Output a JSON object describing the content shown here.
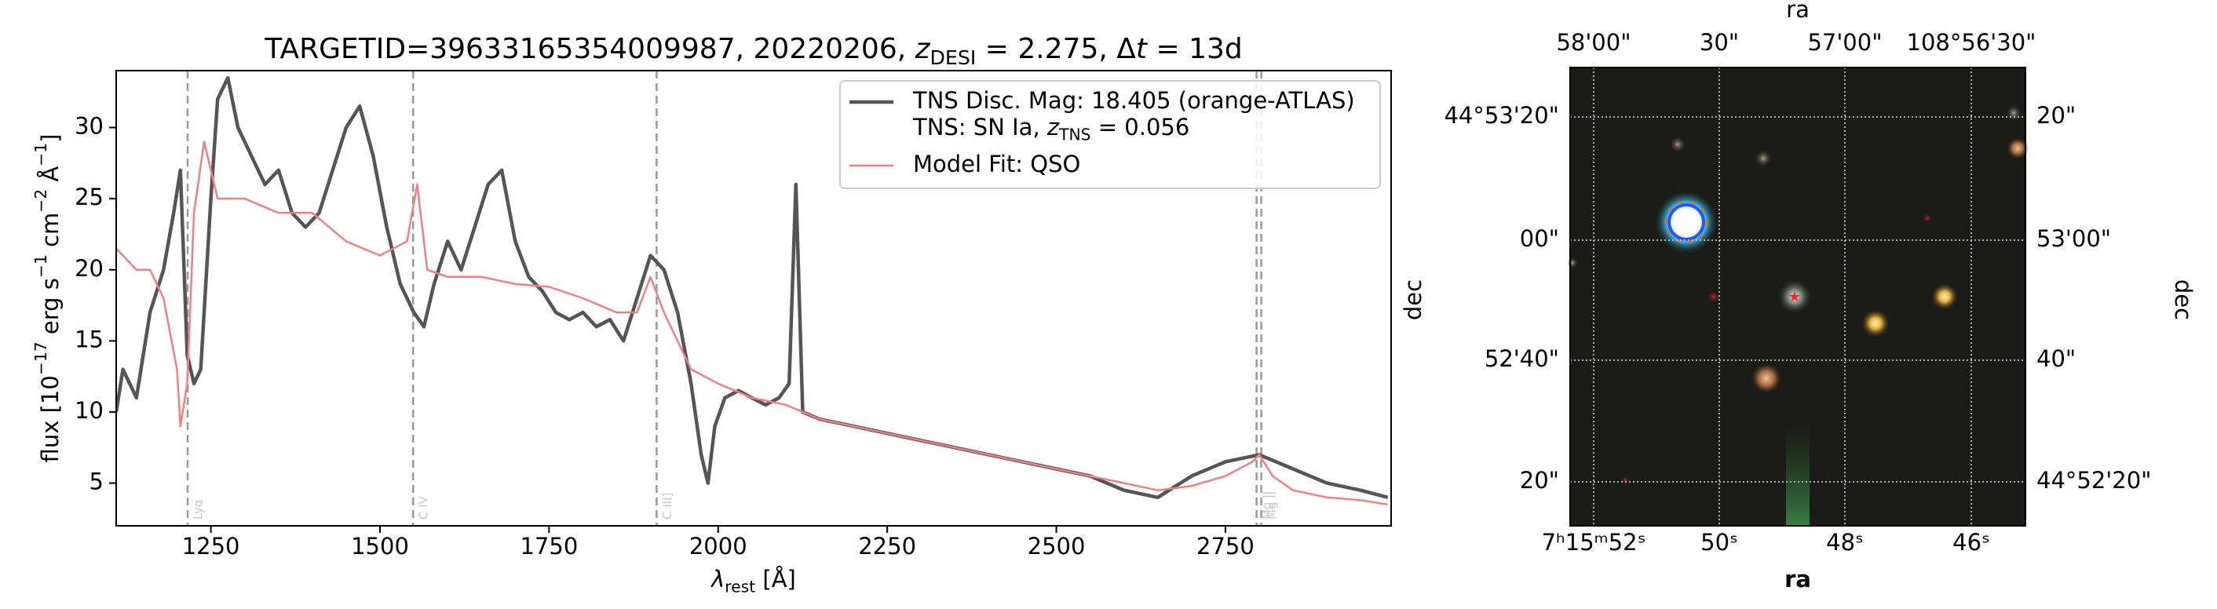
{
  "chart_data": [
    {
      "type": "line",
      "title": [
        {
          "text": "TARGETID=39633165354009987, 20220206, "
        },
        {
          "text": "z",
          "italic": true
        },
        {
          "text": "DESI",
          "sub": true
        },
        {
          "text": " = 2.275, Δ"
        },
        {
          "text": "t",
          "italic": true
        },
        {
          "text": " = 13d"
        }
      ],
      "xlabel": [
        {
          "text": "λ",
          "italic": true
        },
        {
          "text": "rest",
          "sub": true
        },
        {
          "text": " [Å]"
        }
      ],
      "ylabel": [
        {
          "text": "flux [10"
        },
        {
          "text": "−17",
          "sup": true
        },
        {
          "text": " erg s"
        },
        {
          "text": "−1",
          "sup": true
        },
        {
          "text": " cm"
        },
        {
          "text": "−2",
          "sup": true
        },
        {
          "text": " Å"
        },
        {
          "text": "−1",
          "sup": true
        },
        {
          "text": "]"
        }
      ],
      "xlim": [
        1110,
        2995
      ],
      "ylim": [
        2,
        34
      ],
      "xticks": [
        1250,
        1500,
        1750,
        2000,
        2250,
        2500,
        2750
      ],
      "yticks": [
        5,
        10,
        15,
        20,
        25,
        30
      ],
      "lines": [
        {
          "value": 1215.67,
          "label": "Lyα"
        },
        {
          "value": 1549,
          "label": "C IV"
        },
        {
          "value": 1909,
          "label": "C III]"
        },
        {
          "value": 2796,
          "label": "Mg II"
        },
        {
          "value": 2803,
          "label": "Mg II"
        }
      ],
      "legend": "upper right",
      "series": [
        {
          "name": "TNS Disc. Mag: 18.405 (orange-ATLAS)",
          "name_line2": [
            {
              "text": "TNS: SN Ia, "
            },
            {
              "text": "z",
              "italic": true
            },
            {
              "text": "TNS",
              "sub": true
            },
            {
              "text": " = 0.056"
            }
          ],
          "color": "#555555",
          "x": [
            1110,
            1120,
            1140,
            1160,
            1180,
            1195,
            1205,
            1215,
            1225,
            1235,
            1250,
            1260,
            1275,
            1290,
            1310,
            1330,
            1350,
            1370,
            1390,
            1410,
            1430,
            1450,
            1470,
            1490,
            1510,
            1530,
            1550,
            1565,
            1580,
            1600,
            1620,
            1640,
            1660,
            1680,
            1700,
            1720,
            1740,
            1760,
            1780,
            1800,
            1820,
            1840,
            1860,
            1880,
            1900,
            1920,
            1940,
            1960,
            1975,
            1985,
            1995,
            2010,
            2030,
            2050,
            2070,
            2090,
            2105,
            2115,
            2125,
            2150,
            2200,
            2250,
            2300,
            2350,
            2400,
            2450,
            2500,
            2550,
            2600,
            2650,
            2700,
            2750,
            2800,
            2850,
            2900,
            2950,
            2990
          ],
          "values": [
            10,
            13,
            11,
            17,
            20,
            24,
            27,
            14,
            12,
            13,
            25,
            32,
            33.5,
            30,
            28,
            26,
            27,
            24,
            23,
            24,
            27,
            30,
            31.5,
            28,
            23,
            19,
            17,
            16,
            19,
            22,
            20,
            23,
            26,
            27,
            22,
            19.5,
            18.5,
            17,
            16.5,
            17,
            16,
            16.5,
            15,
            18,
            21,
            20,
            17,
            12,
            7,
            5,
            9,
            11,
            11.5,
            11,
            10.5,
            11,
            12,
            26,
            10,
            9.5,
            9,
            8.5,
            8,
            7.5,
            7,
            6.5,
            6,
            5.5,
            4.5,
            4,
            5.5,
            6.5,
            7,
            6,
            5,
            4.5,
            4
          ]
        },
        {
          "name": "Model Fit: QSO",
          "color": "#f08080",
          "x": [
            1110,
            1120,
            1140,
            1160,
            1180,
            1200,
            1205,
            1215,
            1225,
            1240,
            1260,
            1300,
            1350,
            1400,
            1450,
            1500,
            1540,
            1555,
            1570,
            1600,
            1650,
            1700,
            1750,
            1800,
            1850,
            1880,
            1900,
            1920,
            1950,
            1960,
            2000,
            2050,
            2100,
            2150,
            2200,
            2250,
            2300,
            2350,
            2400,
            2450,
            2500,
            2550,
            2600,
            2650,
            2700,
            2750,
            2790,
            2800,
            2820,
            2850,
            2900,
            2950,
            2990
          ],
          "values": [
            21.5,
            21,
            20,
            20,
            18,
            13,
            9,
            12,
            24,
            29,
            25,
            25,
            24,
            24,
            22,
            21,
            22,
            26,
            20,
            19.5,
            19.5,
            19,
            18.8,
            18,
            17,
            17,
            19.5,
            17,
            14,
            13,
            12,
            11,
            10.5,
            9.5,
            9,
            8.5,
            8,
            7.5,
            7,
            6.5,
            6,
            5.5,
            5,
            4.5,
            4.8,
            5.5,
            6.5,
            7,
            5.5,
            4.5,
            4,
            3.8,
            3.5
          ]
        }
      ]
    },
    {
      "type": "image",
      "xlabel_top": "ra",
      "xlabel": "ra",
      "ylabel": "dec",
      "ylabel_right": "dec",
      "xticks_top": [
        "58'00\"",
        "30\"",
        "57'00\"",
        "108°56'30\""
      ],
      "xticks": [
        "7ʰ15ᵐ52ˢ",
        "50ˢ",
        "48ˢ",
        "46ˢ"
      ],
      "yticks": [
        "44°53'20\"",
        "00\"",
        "52'40\"",
        "20\""
      ],
      "yticks_right": [
        "20\"",
        "53'00\"",
        "40\"",
        "44°52'20\""
      ]
    }
  ]
}
